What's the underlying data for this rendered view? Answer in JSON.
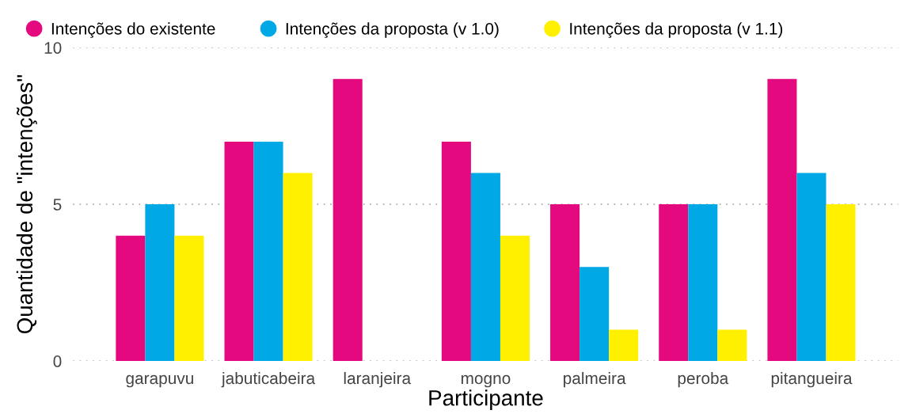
{
  "chart_data": {
    "type": "bar",
    "xlabel": "Participante",
    "ylabel": "Quantidade de \"intenções\"",
    "categories": [
      "garapuvu",
      "jabuticabeira",
      "laranjeira",
      "mogno",
      "palmeira",
      "peroba",
      "pitangueira"
    ],
    "series": [
      {
        "name": "Intenções do existente",
        "color": "#e5097f",
        "values": [
          4,
          7,
          9,
          7,
          5,
          5,
          9
        ]
      },
      {
        "name": "Intenções da proposta (v 1.0)",
        "color": "#00a9e6",
        "values": [
          5,
          7,
          0,
          6,
          3,
          5,
          6
        ]
      },
      {
        "name": "Intenções da proposta (v 1.1)",
        "color": "#fff000",
        "values": [
          4,
          6,
          0,
          4,
          1,
          1,
          5
        ]
      }
    ],
    "ylim": [
      0,
      10
    ],
    "yticks": [
      0,
      5,
      10
    ],
    "grid": "y",
    "legend": "top left"
  }
}
